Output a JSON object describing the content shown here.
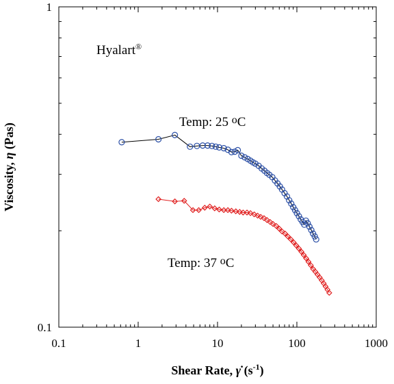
{
  "chart_data": {
    "type": "scatter",
    "x_scale": "log",
    "y_scale": "log",
    "xlim": [
      0.1,
      1000
    ],
    "ylim": [
      0.1,
      1
    ],
    "x_ticks": [
      "0.1",
      "1",
      "10",
      "100",
      "1000"
    ],
    "y_ticks": [
      "0.1",
      "1"
    ],
    "xlabel": {
      "main": "Shear Rate, ",
      "symbol": "γ̇",
      "unit_open": " (s",
      "unit_exp": "-1",
      "unit_close": ")"
    },
    "ylabel": {
      "main": "Viscosity, ",
      "symbol": "η",
      "unit": " (Pas)"
    },
    "grid": false,
    "legend": "none",
    "annotations": {
      "sample": {
        "text": "Hyalart",
        "sup": "®"
      },
      "temp25": {
        "prefix": "Temp:  25 ",
        "degree": "o",
        "unit": "C"
      },
      "temp37": {
        "prefix": "Temp:  37 ",
        "degree": "o",
        "unit": "C"
      }
    },
    "series": [
      {
        "label_ref": "temp25",
        "marker": "circle",
        "color": "#2b4fa6",
        "x": [
          0.62,
          1.8,
          2.9,
          4.5,
          5.5,
          6.5,
          7.5,
          8.5,
          9.5,
          10.5,
          12,
          13.5,
          15,
          16.5,
          18,
          20,
          22,
          24,
          26,
          28,
          30,
          33,
          36,
          39,
          42,
          45,
          49,
          53,
          57,
          61,
          65,
          70,
          75,
          80,
          85,
          90,
          95,
          100,
          106,
          112,
          118,
          124,
          130,
          137,
          144,
          152,
          160,
          168,
          175
        ],
        "y": [
          0.378,
          0.386,
          0.398,
          0.366,
          0.368,
          0.369,
          0.369,
          0.368,
          0.366,
          0.364,
          0.362,
          0.358,
          0.352,
          0.353,
          0.357,
          0.343,
          0.339,
          0.335,
          0.331,
          0.327,
          0.324,
          0.319,
          0.313,
          0.308,
          0.303,
          0.299,
          0.294,
          0.287,
          0.281,
          0.275,
          0.269,
          0.262,
          0.256,
          0.249,
          0.243,
          0.237,
          0.232,
          0.227,
          0.222,
          0.217,
          0.213,
          0.209,
          0.215,
          0.211,
          0.206,
          0.201,
          0.196,
          0.192,
          0.188
        ]
      },
      {
        "label_ref": "temp37",
        "marker": "diamond",
        "color": "#e02020",
        "x": [
          1.8,
          2.9,
          3.8,
          4.9,
          5.8,
          6.9,
          8,
          9.2,
          10.5,
          12,
          13.5,
          15,
          17,
          19,
          21,
          23.5,
          26,
          29,
          32,
          35,
          38.5,
          42,
          46,
          50,
          55,
          60,
          65,
          71,
          77,
          84,
          91,
          98,
          106,
          114,
          122,
          131,
          140,
          150,
          160,
          171,
          182,
          194,
          206,
          218,
          230,
          243,
          256
        ],
        "y": [
          0.251,
          0.247,
          0.248,
          0.232,
          0.232,
          0.236,
          0.238,
          0.235,
          0.233,
          0.232,
          0.232,
          0.231,
          0.23,
          0.229,
          0.228,
          0.228,
          0.227,
          0.225,
          0.223,
          0.221,
          0.219,
          0.216,
          0.213,
          0.21,
          0.207,
          0.203,
          0.199,
          0.196,
          0.192,
          0.188,
          0.184,
          0.18,
          0.176,
          0.172,
          0.168,
          0.164,
          0.16,
          0.156,
          0.152,
          0.149,
          0.146,
          0.143,
          0.14,
          0.137,
          0.134,
          0.131,
          0.128
        ]
      }
    ]
  }
}
